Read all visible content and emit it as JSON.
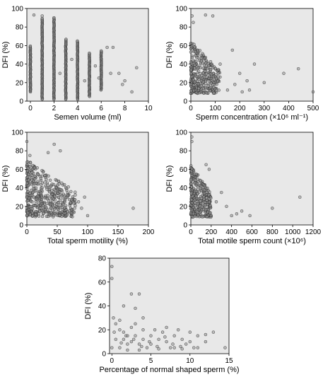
{
  "chart_data": [
    {
      "type": "scatter",
      "xlabel": "Semen volume (ml)",
      "ylabel": "DFI (%)",
      "xlim": [
        -0.3,
        10
      ],
      "ylim": [
        0,
        100
      ],
      "xticks": [
        "0",
        "2",
        "4",
        "6",
        "8",
        "10"
      ],
      "yticks": [
        "0",
        "20",
        "40",
        "60",
        "80",
        "100"
      ],
      "series": [
        {
          "columns": [
            {
              "x": 0,
              "ymin": 10,
              "ymax": 60
            },
            {
              "x": 1,
              "ymin": 2,
              "ymax": 90
            },
            {
              "x": 2,
              "ymin": 2,
              "ymax": 90
            },
            {
              "x": 3,
              "ymin": 2,
              "ymax": 67
            },
            {
              "x": 4,
              "ymin": 2,
              "ymax": 65
            },
            {
              "x": 5,
              "ymin": 5,
              "ymax": 52
            },
            {
              "x": 6,
              "ymin": 12,
              "ymax": 55
            }
          ],
          "points": [
            [
              0.3,
              93
            ],
            [
              1,
              92
            ],
            [
              2,
              90
            ],
            [
              2.5,
              30
            ],
            [
              3.5,
              45
            ],
            [
              5.5,
              38
            ],
            [
              6.5,
              58
            ],
            [
              7,
              58
            ],
            [
              7.5,
              30
            ],
            [
              7.8,
              18
            ],
            [
              8,
              22
            ],
            [
              8.6,
              10
            ],
            [
              9,
              36
            ],
            [
              6.8,
              30
            ],
            [
              5.8,
              25
            ],
            [
              4.6,
              22
            ]
          ]
        }
      ]
    },
    {
      "type": "scatter",
      "xlabel": "Sperm concentration (×10⁶ ml⁻¹)",
      "ylabel": "DFI (%)",
      "xlim": [
        0,
        500
      ],
      "ylim": [
        0,
        100
      ],
      "xticks": [
        "0",
        "100",
        "200",
        "300",
        "400",
        "500"
      ],
      "yticks": [
        "0",
        "20",
        "40",
        "60",
        "80",
        "100"
      ],
      "series": [
        {
          "cluster": {
            "xmin": 0,
            "xmax": 120,
            "ymin": 2,
            "ymax": 65,
            "n": 340
          },
          "points": [
            [
              5,
              92
            ],
            [
              10,
              85
            ],
            [
              60,
              93
            ],
            [
              90,
              92
            ],
            [
              170,
              55
            ],
            [
              210,
              10
            ],
            [
              230,
              22
            ],
            [
              260,
              40
            ],
            [
              300,
              20
            ],
            [
              380,
              30
            ],
            [
              440,
              35
            ],
            [
              500,
              10
            ],
            [
              150,
              12
            ],
            [
              180,
              18
            ],
            [
              200,
              30
            ],
            [
              240,
              12
            ],
            [
              120,
              40
            ]
          ]
        }
      ]
    },
    {
      "type": "scatter",
      "xlabel": "Total sperm motility (%)",
      "ylabel": "DFI (%)",
      "xlim": [
        0,
        200
      ],
      "ylim": [
        0,
        100
      ],
      "xticks": [
        "0",
        "50",
        "100",
        "150",
        "200"
      ],
      "yticks": [
        "0",
        "20",
        "40",
        "60",
        "80",
        "100"
      ],
      "series": [
        {
          "cluster": {
            "xmin": 0,
            "xmax": 80,
            "ymin": 2,
            "ymax": 70,
            "n": 480
          },
          "points": [
            [
              0,
              90
            ],
            [
              5,
              75
            ],
            [
              35,
              78
            ],
            [
              45,
              87
            ],
            [
              55,
              80
            ],
            [
              90,
              18
            ],
            [
              100,
              10
            ],
            [
              175,
              18
            ],
            [
              85,
              25
            ],
            [
              95,
              30
            ]
          ]
        }
      ]
    },
    {
      "type": "scatter",
      "xlabel": "Total motile sperm count (×10⁶)",
      "ylabel": "DFI (%)",
      "xlim": [
        0,
        1200
      ],
      "ylim": [
        0,
        100
      ],
      "xticks": [
        "0",
        "200",
        "400",
        "600",
        "800",
        "1000",
        "1200"
      ],
      "yticks": [
        "0",
        "20",
        "40",
        "60",
        "80",
        "100"
      ],
      "series": [
        {
          "cluster": {
            "xmin": 0,
            "xmax": 200,
            "ymin": 2,
            "ymax": 65,
            "n": 330
          },
          "points": [
            [
              10,
              95
            ],
            [
              10,
              90
            ],
            [
              150,
              65
            ],
            [
              180,
              60
            ],
            [
              300,
              35
            ],
            [
              400,
              10
            ],
            [
              500,
              15
            ],
            [
              580,
              10
            ],
            [
              800,
              18
            ],
            [
              1070,
              30
            ],
            [
              250,
              25
            ],
            [
              350,
              20
            ],
            [
              450,
              12
            ]
          ]
        }
      ]
    },
    {
      "type": "scatter",
      "xlabel": "Percentage of normal shaped sperm (%)",
      "ylabel": "DFI (%)",
      "xlim": [
        -0.3,
        15
      ],
      "ylim": [
        0,
        80
      ],
      "xticks": [
        "0",
        "5",
        "10",
        "15"
      ],
      "yticks": [
        "0",
        "20",
        "40",
        "60",
        "80"
      ],
      "series": [
        {
          "points": [
            [
              0,
              73
            ],
            [
              0,
              63
            ],
            [
              0,
              5
            ],
            [
              0.2,
              30
            ],
            [
              0.5,
              12
            ],
            [
              1,
              20
            ],
            [
              1,
              28
            ],
            [
              1.5,
              18
            ],
            [
              2,
              8
            ],
            [
              2.5,
              10
            ],
            [
              2.5,
              50
            ],
            [
              3,
              38
            ],
            [
              3,
              25
            ],
            [
              3.5,
              50
            ],
            [
              3,
              15
            ],
            [
              3.5,
              8
            ],
            [
              4,
              20
            ],
            [
              4,
              12
            ],
            [
              4.5,
              5
            ],
            [
              5,
              15
            ],
            [
              5,
              8
            ],
            [
              5.5,
              20
            ],
            [
              6,
              12
            ],
            [
              6.5,
              18
            ],
            [
              7,
              10
            ],
            [
              7.5,
              5
            ],
            [
              8,
              15
            ],
            [
              8.5,
              20
            ],
            [
              9,
              12
            ],
            [
              9.5,
              8
            ],
            [
              10,
              18
            ],
            [
              10.5,
              5
            ],
            [
              11,
              15
            ],
            [
              12,
              10
            ],
            [
              13,
              18
            ],
            [
              14.5,
              5
            ],
            [
              1,
              5
            ],
            [
              1.5,
              12
            ],
            [
              2,
              3
            ],
            [
              2.5,
              22
            ],
            [
              3.5,
              3
            ],
            [
              4,
              30
            ],
            [
              6,
              4
            ],
            [
              7,
              22
            ],
            [
              8,
              5
            ],
            [
              9,
              4
            ],
            [
              10,
              10
            ],
            [
              11,
              5
            ],
            [
              12,
              16
            ],
            [
              2,
              15
            ],
            [
              0.5,
              25
            ],
            [
              1.2,
              9
            ],
            [
              1.8,
              15
            ],
            [
              2.8,
              12
            ],
            [
              3.8,
              6
            ],
            [
              4.8,
              10
            ],
            [
              5.8,
              6
            ],
            [
              6.8,
              14
            ],
            [
              7.8,
              8
            ],
            [
              8.8,
              6
            ],
            [
              1.5,
              40
            ],
            [
              0.3,
              18
            ]
          ]
        }
      ]
    }
  ]
}
